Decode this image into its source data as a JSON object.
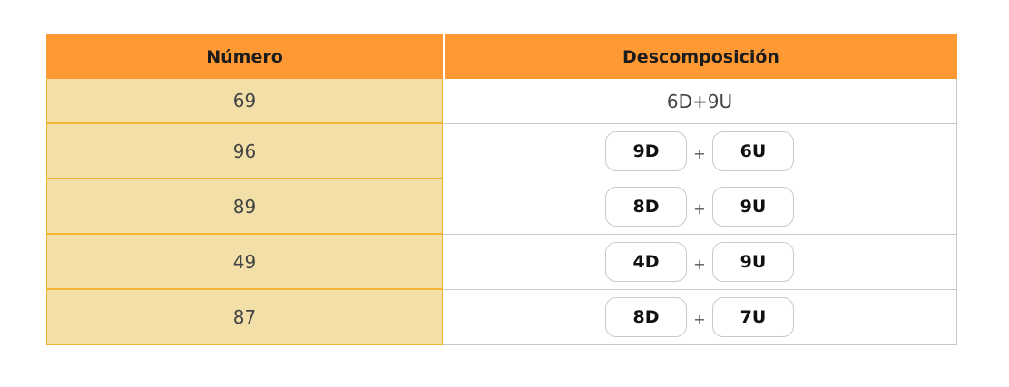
{
  "table": {
    "headers": {
      "number": "Número",
      "decomposition": "Descomposición"
    },
    "rows": [
      {
        "number": "69",
        "decomposition": "6D+9U"
      },
      {
        "number": "96",
        "tens": "9D",
        "plus": "+",
        "units": "6U"
      },
      {
        "number": "89",
        "tens": "8D",
        "plus": "+",
        "units": "9U"
      },
      {
        "number": "49",
        "tens": "4D",
        "plus": "+",
        "units": "9U"
      },
      {
        "number": "87",
        "tens": "8D",
        "plus": "+",
        "units": "7U"
      }
    ]
  },
  "colors": {
    "header_bg": "#ff9933",
    "number_cell_bg": "#f3dfa8",
    "number_cell_border": "#f0b531"
  }
}
